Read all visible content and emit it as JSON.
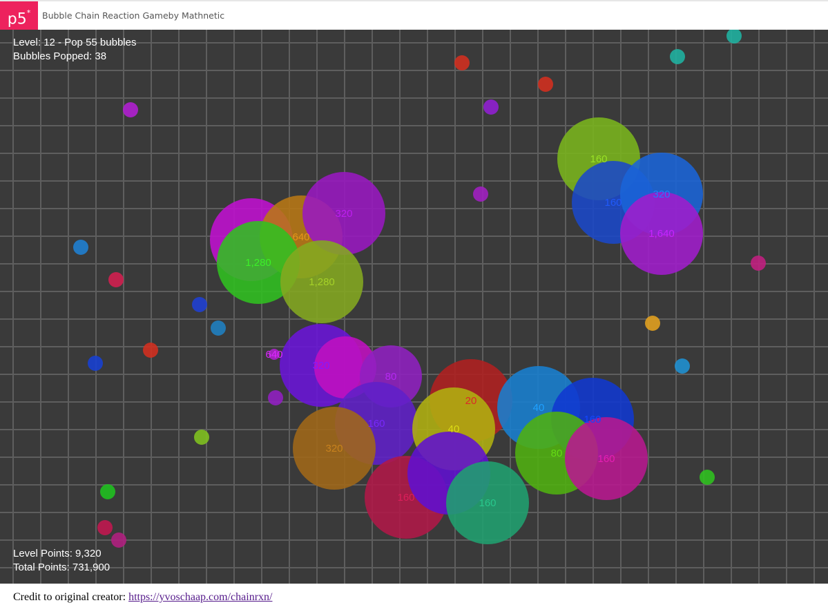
{
  "header": {
    "logo_text": "p5",
    "logo_mark": "*",
    "title": "Bubble Chain Reaction Gameby Mathnetic",
    "logo_color": "#ed225d"
  },
  "hud": {
    "level": "Level: 12 - Pop 55 bubbles",
    "popped": "Bubbles Popped: 38",
    "level_points": "Level Points: 9,320",
    "total_points": "Total Points: 731,900"
  },
  "footer": {
    "credit": "Credit to original creator: ",
    "link": "https://yvoschaap.com/chainrxn/"
  },
  "game": {
    "background": "#3a3a3a",
    "expanded_bubbles": [
      {
        "label": "160",
        "color": "#7ab51d"
      },
      {
        "label": "160",
        "color": "#1a48c8"
      },
      {
        "label": "320",
        "color": "#1a64d8"
      },
      {
        "label": "1,640",
        "color": "#a01ccc"
      },
      {
        "label": "",
        "color": "#c010d0"
      },
      {
        "label": "640",
        "color": "#b87814"
      },
      {
        "label": "320",
        "color": "#9818c0"
      },
      {
        "label": "1,280",
        "color": "#30c020"
      },
      {
        "label": "1,280",
        "color": "#84a820"
      },
      {
        "label": "320",
        "color": "#6a14d8"
      },
      {
        "label": "",
        "color": "#c010c0"
      },
      {
        "label": "80",
        "color": "#9020c0"
      },
      {
        "label": "160",
        "color": "#6020c8"
      },
      {
        "label": "320",
        "color": "#a06818"
      },
      {
        "label": "20",
        "color": "#b02020"
      },
      {
        "label": "40",
        "color": "#b0b010"
      },
      {
        "label": "160",
        "color": "#b01848"
      },
      {
        "label": "",
        "color": "#6010d0"
      },
      {
        "label": "160",
        "color": "#20a070"
      },
      {
        "label": "40",
        "color": "#1880d0"
      },
      {
        "label": "160",
        "color": "#1038d0"
      },
      {
        "label": "80",
        "color": "#50b010"
      },
      {
        "label": "160",
        "color": "#b81890"
      },
      {
        "label": "640",
        "color": "#b020d0"
      }
    ],
    "free_bubbles": [
      "#d03020",
      "#d03020",
      "#9020d0",
      "#a020c0",
      "#b020d0",
      "#2080d0",
      "#d02050",
      "#2040d0",
      "#2080c0",
      "#d03020",
      "#1840d0",
      "#9020c0",
      "#80c020",
      "#20c020",
      "#c01850",
      "#b02080",
      "#20b0a0",
      "#20b0a0",
      "#c02080",
      "#e0a020",
      "#2090d0",
      "#30c020"
    ]
  }
}
